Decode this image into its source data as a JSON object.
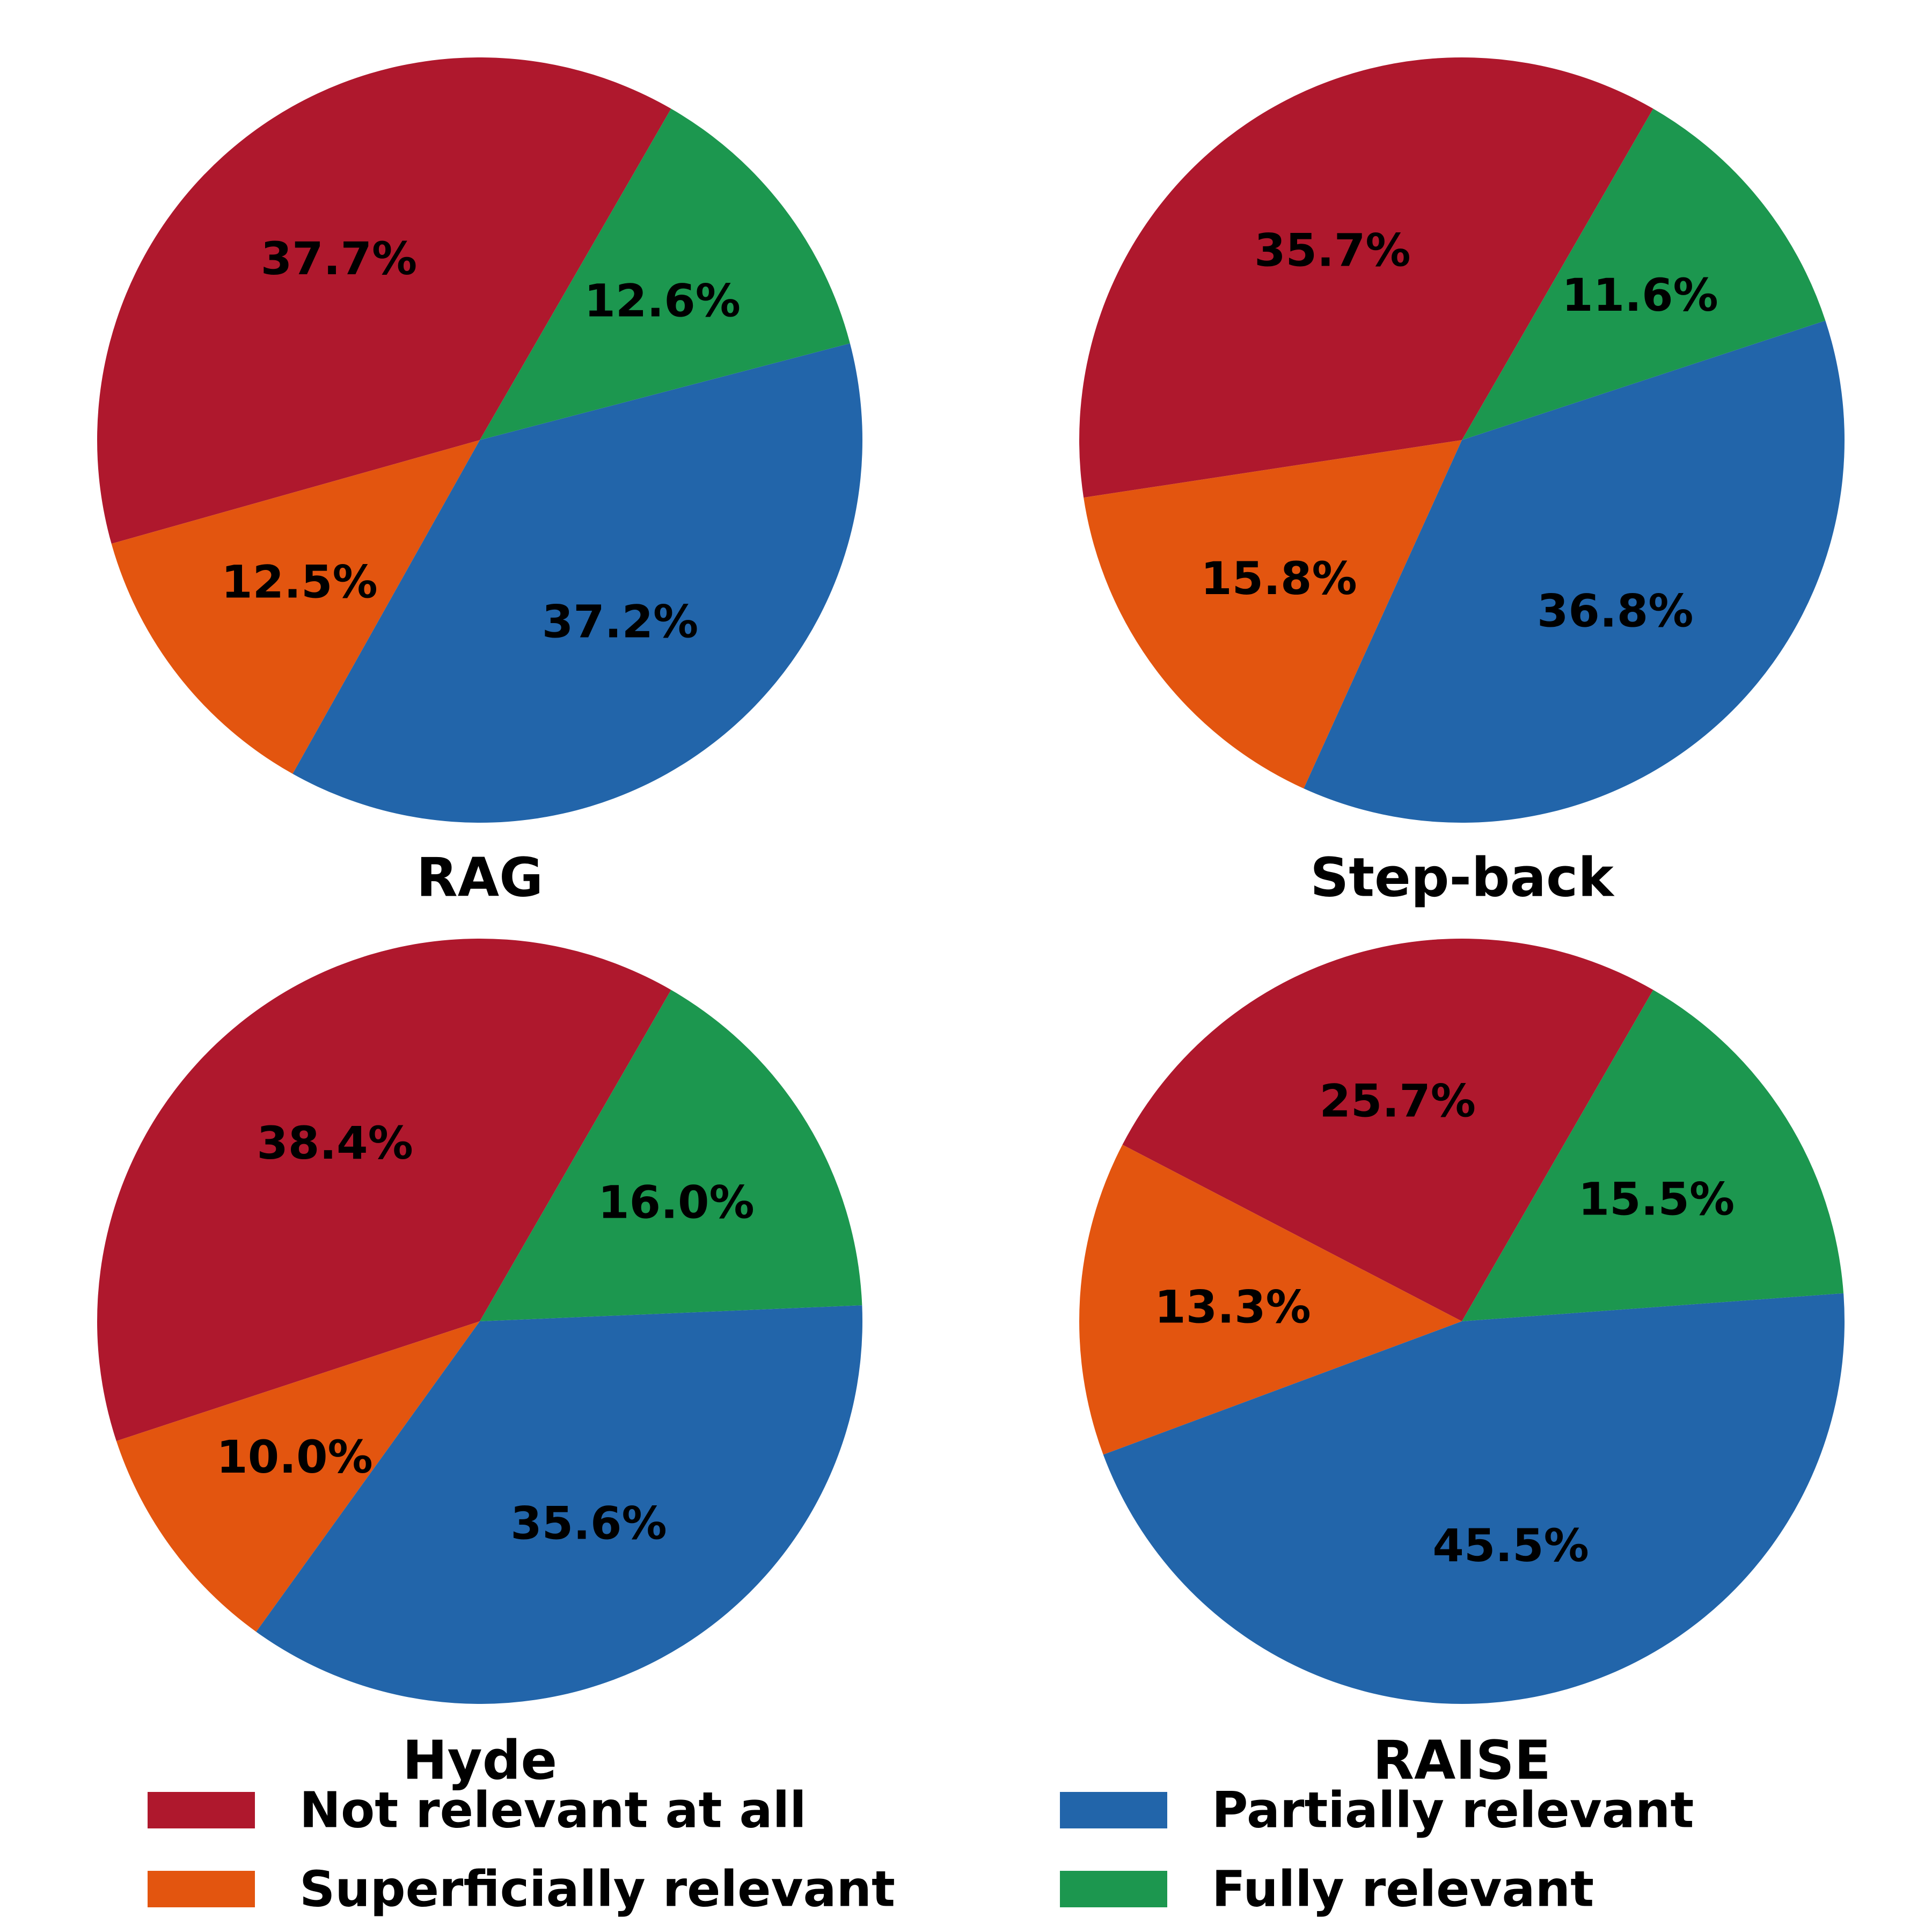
{
  "chart_data": {
    "type": "pie",
    "categories": [
      "Not relevant at all",
      "Superficially relevant",
      "Partially relevant",
      "Fully relevant"
    ],
    "colors": [
      "#AF182D",
      "#E3550F",
      "#2265AA",
      "#1C974F"
    ],
    "legend": {
      "placement": "bottom",
      "items": [
        {
          "label": "Not relevant at all",
          "color": "#AF182D"
        },
        {
          "label": "Partially relevant",
          "color": "#2265AA"
        },
        {
          "label": "Superficially relevant",
          "color": "#E3550F"
        },
        {
          "label": "Fully relevant",
          "color": "#1C974F"
        }
      ]
    },
    "pies": [
      {
        "title": "RAG",
        "values": [
          37.7,
          12.5,
          37.2,
          12.6
        ],
        "labels": [
          "37.7%",
          "12.5%",
          "37.2%",
          "12.6%"
        ]
      },
      {
        "title": "Step-back",
        "values": [
          35.7,
          15.8,
          36.8,
          11.6
        ],
        "labels": [
          "35.7%",
          "15.8%",
          "36.8%",
          "11.6%"
        ]
      },
      {
        "title": "Hyde",
        "values": [
          38.4,
          10.0,
          35.6,
          16.0
        ],
        "labels": [
          "38.4%",
          "10.0%",
          "35.6%",
          "16.0%"
        ]
      },
      {
        "title": "RAISE",
        "values": [
          25.7,
          13.3,
          45.5,
          15.5
        ],
        "labels": [
          "25.7%",
          "13.3%",
          "45.5%",
          "15.5%"
        ]
      }
    ]
  }
}
